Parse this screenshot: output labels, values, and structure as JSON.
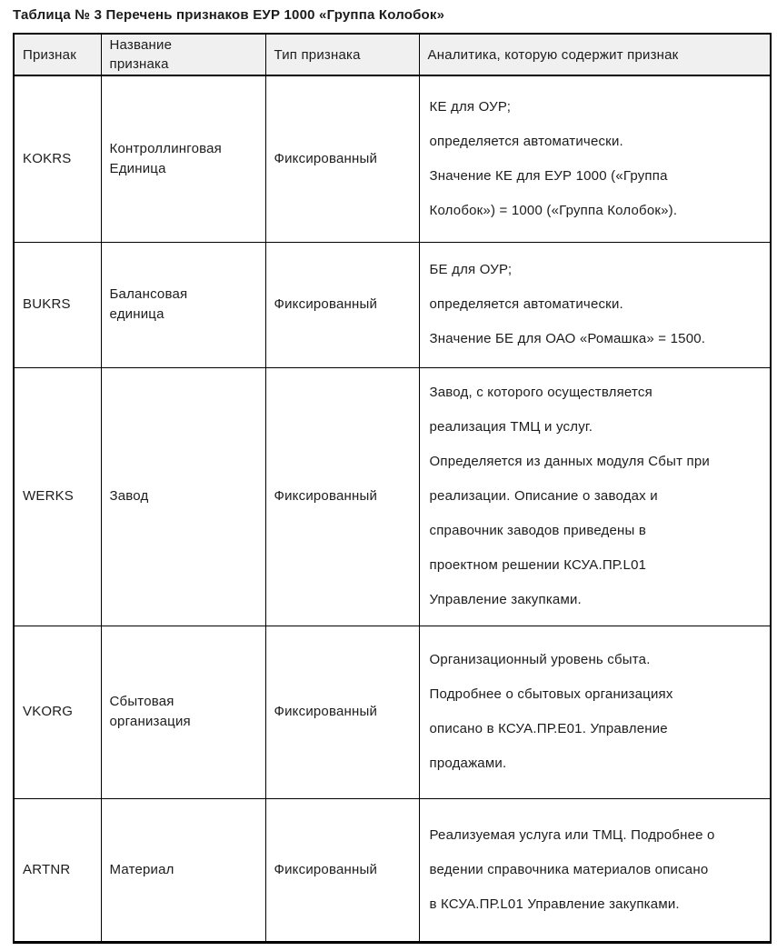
{
  "title": "Таблица № 3 Перечень признаков ЕУР 1000 «Группа Колобок»",
  "table": {
    "headers": {
      "attribute": "Признак",
      "name": [
        "Название",
        "признака"
      ],
      "type": "Тип признака",
      "analytics": "Аналитика, которую содержит признак"
    },
    "rows": [
      {
        "code": "KOKRS",
        "name": [
          "Контроллинговая",
          "Единица"
        ],
        "type": "Фиксированный",
        "analytics": [
          "КЕ для ОУР;",
          "определяется автоматически.",
          "Значение КЕ для ЕУР 1000 («Группа",
          "Колобок») = 1000 («Группа Колобок»)."
        ]
      },
      {
        "code": "BUKRS",
        "name": [
          "Балансовая",
          "единица"
        ],
        "type": "Фиксированный",
        "analytics": [
          "БЕ для ОУР;",
          "определяется автоматически.",
          "Значение БЕ для ОАО «Ромашка» = 1500."
        ]
      },
      {
        "code": "WERKS",
        "name": [
          "Завод"
        ],
        "type": "Фиксированный",
        "analytics": [
          "Завод, с которого осуществляется",
          "реализация ТМЦ и услуг.",
          "Определяется из данных модуля Сбыт при",
          "реализации. Описание о заводах и",
          "справочник заводов приведены в",
          "проектном решении КСУА.ПР.L01",
          "Управление закупками."
        ]
      },
      {
        "code": "VKORG",
        "name": [
          "Сбытовая",
          "организация"
        ],
        "type": "Фиксированный",
        "analytics": [
          "Организационный уровень сбыта.",
          "Подробнее о сбытовых организациях",
          "описано в КСУА.ПР.Е01. Управление",
          "продажами."
        ]
      },
      {
        "code": "ARTNR",
        "name": [
          "Материал"
        ],
        "type": "Фиксированный",
        "analytics": [
          "Реализуемая услуга или ТМЦ. Подробнее о",
          "ведении справочника материалов описано",
          "в КСУА.ПР.L01 Управление закупками."
        ]
      }
    ]
  }
}
